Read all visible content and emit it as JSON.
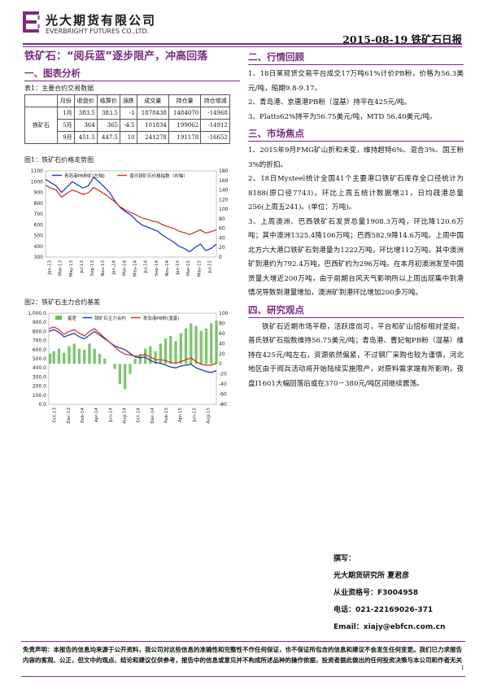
{
  "header": {
    "logo_cn": "光大期货有限公司",
    "logo_en": "EVERBRIGHT FUTURES CO.,LTD.",
    "date_title": "2015-08-19 铁矿石日报"
  },
  "headline": "铁矿石：“阅兵蓝”逐步限产，冲高回落",
  "left": {
    "section1_title": "一、图表分析",
    "table_caption": "表1：主要合约交易数据",
    "table": {
      "headers": [
        "",
        "月份",
        "收盘价",
        "结算价",
        "涨跌",
        "成交量",
        "持仓量",
        "持仓增减"
      ],
      "category": "铁矿石",
      "rows": [
        [
          "1月",
          "383.5",
          "383.5",
          "-1",
          "1878438",
          "1484070",
          "-14968"
        ],
        [
          "5月",
          "364",
          "365",
          "-4.5",
          "101834",
          "199062",
          "-14912"
        ],
        [
          "9月",
          "451.5",
          "447.5",
          "10",
          "241278",
          "191178",
          "-16652"
        ]
      ]
    },
    "fig1_caption": "图1：铁矿石价格走势图",
    "fig2_caption": "图2：铁矿石主力合约基差"
  },
  "chart_data": [
    {
      "type": "line",
      "title": "",
      "series": [
        {
          "name": "青岛港PB粉矿(左轴)",
          "axis": "left",
          "color": "#1f3fbf",
          "values": [
            1020,
            990,
            960,
            900,
            950,
            1000,
            970,
            940,
            960,
            1040,
            1000,
            950,
            900,
            820,
            760,
            720,
            690,
            640,
            600,
            580,
            560,
            540,
            500,
            470,
            440,
            400,
            380,
            350,
            390,
            420,
            360,
            380,
            420
          ]
        },
        {
          "name": "普氏铁矿石价格指数（右轴）",
          "axis": "right",
          "color": "#d0392b",
          "values": [
            150,
            144,
            140,
            125,
            133,
            140,
            136,
            131,
            134,
            145,
            139,
            132,
            124,
            115,
            105,
            98,
            93,
            88,
            82,
            79,
            75,
            73,
            67,
            63,
            60,
            54,
            51,
            47,
            52,
            57,
            50,
            53,
            57
          ]
        }
      ],
      "x_ticks": [
        "Jan-13",
        "Mar-13",
        "May-13",
        "Jul-13",
        "Sep-13",
        "Nov-13",
        "Jan-14",
        "Mar-14",
        "May-14",
        "Jul-14",
        "Sep-14",
        "Nov-14",
        "Jan-15",
        "Mar-15",
        "May-15",
        "Jul-15"
      ],
      "y_left_ticks": [
        "300",
        "400",
        "500",
        "600",
        "700",
        "800",
        "900",
        "1000",
        "1100"
      ],
      "y_right_ticks": [
        "0",
        "20",
        "40",
        "60",
        "80",
        "100",
        "120",
        "140",
        "160",
        "180"
      ],
      "ylim_left": [
        300,
        1100
      ],
      "ylim_right": [
        0,
        180
      ],
      "legend": "top"
    },
    {
      "type": "line",
      "title": "",
      "series": [
        {
          "name": "基差",
          "axis": "right",
          "kind": "bar",
          "color": "#66bb55",
          "values": [
            20,
            25,
            30,
            22,
            35,
            40,
            30,
            28,
            40,
            30,
            20,
            10,
            0,
            -10,
            -40,
            -50,
            -20,
            10,
            20,
            30,
            35,
            25,
            40,
            50,
            55,
            45,
            60,
            70,
            80,
            75,
            65,
            70,
            80,
            85
          ]
        },
        {
          "name": "铁矿石主力合约",
          "axis": "left",
          "kind": "line",
          "color": "#1f3fbf",
          "values": [
            800,
            820,
            790,
            740,
            760,
            780,
            740,
            720,
            760,
            800,
            760,
            720,
            680,
            640,
            620,
            600,
            560,
            520,
            510,
            520,
            480,
            460,
            450,
            430,
            410,
            400,
            420,
            430,
            440,
            400,
            380,
            360,
            350,
            370
          ]
        },
        {
          "name": "青岛港PB粉(湿基)",
          "axis": "left",
          "kind": "line",
          "color": "#d0392b",
          "values": [
            830,
            850,
            820,
            770,
            800,
            820,
            780,
            750,
            800,
            830,
            780,
            730,
            680,
            630,
            580,
            550,
            540,
            530,
            530,
            550,
            520,
            490,
            490,
            480,
            460,
            450,
            470,
            490,
            510,
            470,
            440,
            430,
            430,
            450
          ]
        }
      ],
      "x_ticks": [
        "Oct-13",
        "Dec-13",
        "Feb-14",
        "Apr-14",
        "Jun-14",
        "Aug-14",
        "Oct-14",
        "Dec-14",
        "Feb-15",
        "Apr-15",
        "Jun-15",
        "Aug-15"
      ],
      "y_left_ticks": [
        "0.0",
        "100.0",
        "200.0",
        "300.0",
        "400.0",
        "500.0",
        "600.0",
        "700.0",
        "800.0",
        "900.0",
        "1,000.0"
      ],
      "y_right_ticks": [
        "-80",
        "-60",
        "-40",
        "-20",
        "0",
        "20",
        "40",
        "60",
        "80",
        "100"
      ],
      "ylim_left": [
        0,
        1000
      ],
      "ylim_right": [
        -80,
        100
      ],
      "legend": "top"
    }
  ],
  "right": {
    "section2_title": "二、行情回顾",
    "review": [
      "1、18日某现货交易平台成交17万吨61%计价PB粉，价格为56.3美元/吨，船期9.8-9.17。",
      "2、青岛港、京唐港PB粉（湿基）持平在425元/吨。",
      "3、Platts62%持平为56.75美元/吨，MTD 56.40美元/吨。"
    ],
    "section3_title": "三、市场焦点",
    "focus": [
      "1、2015年9月FMG矿山折和未变，维持超特6%、混合3%、国王粉3%的折扣。",
      "2、18日Mysteel统计全国41个主要港口铁矿石库存全口径统计为8188(原口径7743)，环比上周五统计数据增21，日均疏港总量256(上周五241)。(单位：万吨)。",
      "3、上周澳洲、巴西铁矿石发货总量1908.3万吨，环比降120.6万吨；其中澳洲1325.4降106万吨；巴西582.9降14.6万吨。上周中国北方六大港口铁矿石到港量为1222万吨，环比增112万吨。其中澳洲矿到港约为792.4万吨，巴西矿约为296万吨。在本月初澳洲发至中国货量大增近200万吨，由于前期台风天气影响所以上周出现集中到港情况导致到港量增加，澳洲矿到港环比增加200多万吨。"
    ],
    "section4_title": "四、研究观点",
    "opinion": "铁矿石近期市场平稳，活跃度尚可，平台和矿山招标相对坚挺，普氏铁矿石指数维持56.75美元/吨；青岛港、曹妃甸PB粉（湿基）维持在425元/吨左右，资源依然偏紧，不过钢厂采购也较为谨慎，河北地区由于阅兵活动将开始陆续实施限产，对原料需求端有所影响，夜盘I1601大幅回落后或在370－380元/吨区间继续震荡。"
  },
  "author": {
    "label": "撰写：",
    "name": "光大期货研究所 夏君彦",
    "license": "从业资格号：F3004958",
    "phone": "电话：021-22169026-371",
    "email": "Email：xiajy@ebfcn.com.cn"
  },
  "disclaimer": "免责声明：本报告的信息均来源于公开资料，我公司对这些信息的准确性和完整性不作任何保证，也不保证所包含的信息和建议不会发生任何变更。我们已力求报告内容的客观、公正，但文中的观点、结论和建议仅供参考，报告中的信息或意见并不构成所述品种的操作依据，投资者据此做出的任何投资决策与本公司和作者无关",
  "page_number": "1"
}
